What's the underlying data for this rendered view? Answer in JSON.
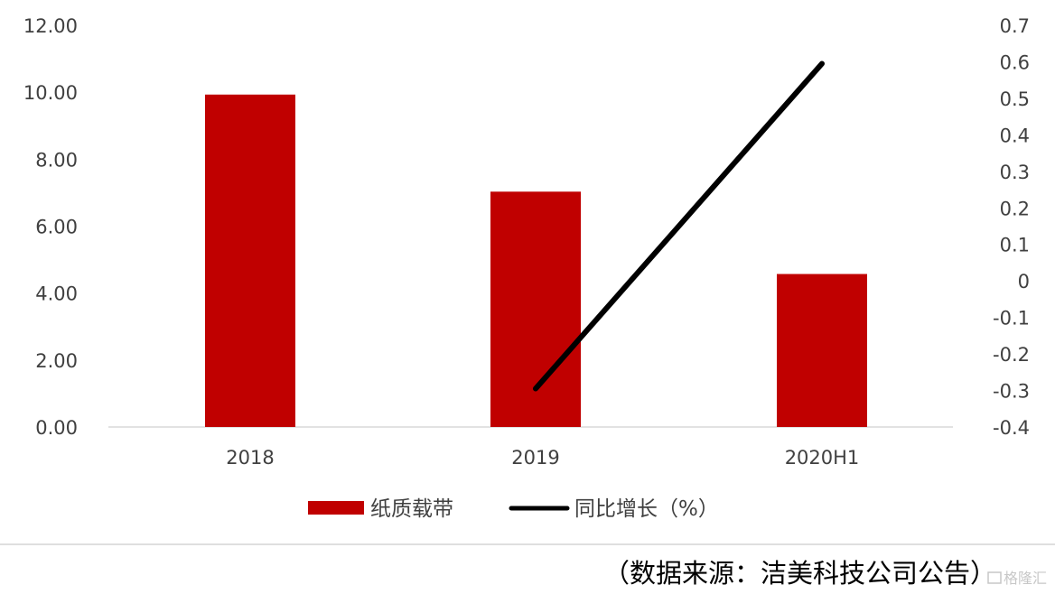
{
  "chart_data": {
    "type": "bar",
    "categories": [
      "2018",
      "2019",
      "2020H1"
    ],
    "series": [
      {
        "name": "纸质载带",
        "kind": "bar",
        "axis": "left",
        "color": "#C00000",
        "values": [
          9.93,
          7.03,
          4.57
        ]
      },
      {
        "name": "同比增长（%）",
        "kind": "line",
        "axis": "right",
        "color": "#000000",
        "values": [
          null,
          -0.295,
          0.595
        ]
      }
    ],
    "y_left": {
      "min": 0,
      "max": 12,
      "ticks": [
        "0.00",
        "2.00",
        "4.00",
        "6.00",
        "8.00",
        "10.00",
        "12.00"
      ]
    },
    "y_right": {
      "min": -0.4,
      "max": 0.7,
      "ticks": [
        "-0.4",
        "-0.3",
        "-0.2",
        "-0.1",
        "0",
        "0.1",
        "0.2",
        "0.3",
        "0.4",
        "0.5",
        "0.6",
        "0.7"
      ]
    },
    "grid": false,
    "legend_position": "bottom",
    "source": "（数据来源：洁美科技公司公告）"
  },
  "watermark": "格隆汇"
}
